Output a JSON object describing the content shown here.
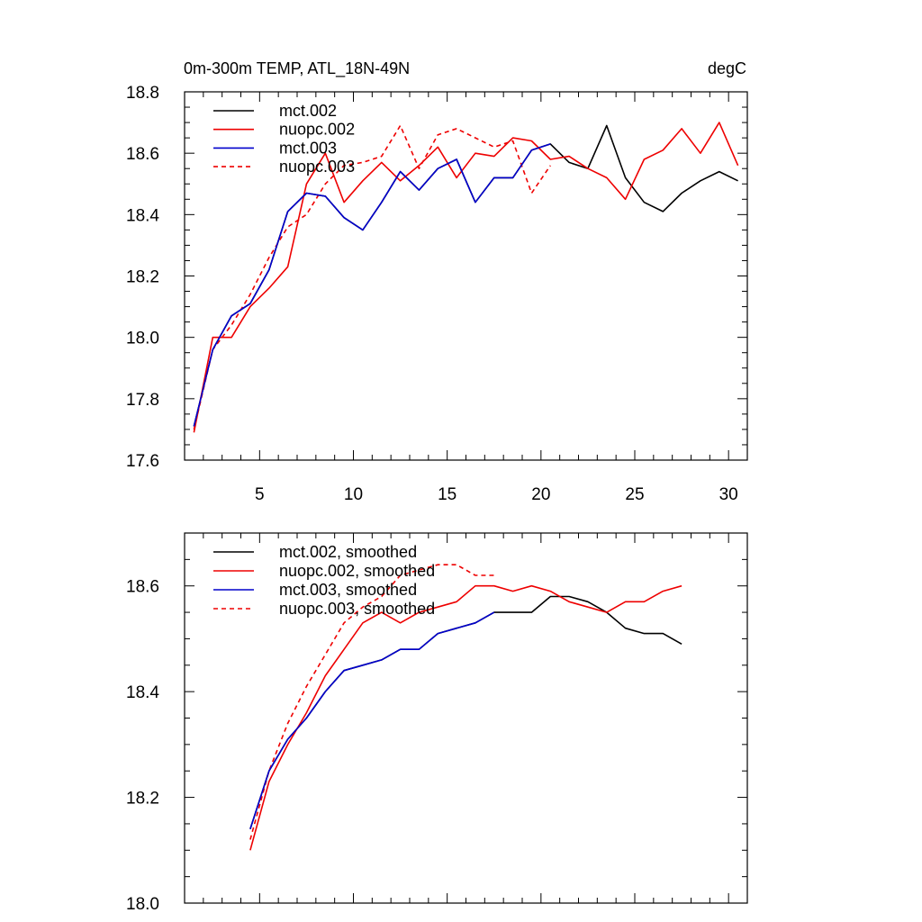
{
  "colors": {
    "mct002": "#000000",
    "nuopc002": "#ee0000",
    "mct003": "#0000cc",
    "nuopc003": "#ee0000"
  },
  "chart_data": [
    {
      "type": "line",
      "title": "0m-300m TEMP, ATL_18N-49N",
      "units": "degC",
      "xlabel": "",
      "ylabel": "",
      "xlim": [
        1,
        31
      ],
      "ylim": [
        17.6,
        18.8
      ],
      "xticks": [
        5,
        10,
        15,
        20,
        25,
        30
      ],
      "yticks": [
        17.6,
        17.8,
        18.0,
        18.2,
        18.4,
        18.6,
        18.8
      ],
      "ytick_labels": [
        "17.6",
        "17.8",
        "18.0",
        "18.2",
        "18.4",
        "18.6",
        "18.8"
      ],
      "xtick_labels": [
        "5",
        "10",
        "15",
        "20",
        "25",
        "30"
      ],
      "legend_position": "top-left",
      "series": [
        {
          "name": "mct.002",
          "color_key": "mct002",
          "dashed": false,
          "x": [
            1.5,
            2.5,
            3.5,
            4.5,
            5.5,
            6.5,
            7.5,
            8.5,
            9.5,
            10.5,
            11.5,
            12.5,
            13.5,
            14.5,
            15.5,
            16.5,
            17.5,
            18.5,
            19.5,
            20.5,
            21.5,
            22.5,
            23.5,
            24.5,
            25.5,
            26.5,
            27.5,
            28.5,
            29.5,
            30.5
          ],
          "y": [
            17.71,
            17.96,
            18.07,
            18.11,
            18.22,
            18.41,
            18.47,
            18.46,
            18.39,
            18.35,
            18.44,
            18.54,
            18.48,
            18.55,
            18.58,
            18.44,
            18.52,
            18.52,
            18.61,
            18.63,
            18.57,
            18.55,
            18.69,
            18.52,
            18.44,
            18.41,
            18.47,
            18.51,
            18.54,
            18.51
          ]
        },
        {
          "name": "nuopc.002",
          "color_key": "nuopc002",
          "dashed": false,
          "x": [
            1.5,
            2.5,
            3.5,
            4.5,
            5.5,
            6.5,
            7.5,
            8.5,
            9.5,
            10.5,
            11.5,
            12.5,
            13.5,
            14.5,
            15.5,
            16.5,
            17.5,
            18.5,
            19.5,
            20.5,
            21.5,
            22.5,
            23.5,
            24.5,
            25.5,
            26.5,
            27.5,
            28.5,
            29.5,
            30.5
          ],
          "y": [
            17.69,
            18.0,
            18.0,
            18.1,
            18.16,
            18.23,
            18.5,
            18.6,
            18.44,
            18.51,
            18.57,
            18.51,
            18.56,
            18.62,
            18.52,
            18.6,
            18.59,
            18.65,
            18.64,
            18.58,
            18.59,
            18.55,
            18.52,
            18.45,
            18.58,
            18.61,
            18.68,
            18.6,
            18.7,
            18.56
          ]
        },
        {
          "name": "mct.003",
          "color_key": "mct003",
          "dashed": false,
          "x": [
            1.5,
            2.5,
            3.5,
            4.5,
            5.5,
            6.5,
            7.5,
            8.5,
            9.5,
            10.5,
            11.5,
            12.5,
            13.5,
            14.5,
            15.5,
            16.5,
            17.5,
            18.5,
            19.5,
            20.5
          ],
          "y": [
            17.71,
            17.96,
            18.07,
            18.11,
            18.22,
            18.41,
            18.47,
            18.46,
            18.39,
            18.35,
            18.44,
            18.54,
            18.48,
            18.55,
            18.58,
            18.44,
            18.52,
            18.52,
            18.61,
            18.63
          ]
        },
        {
          "name": "nuopc.003",
          "color_key": "nuopc003",
          "dashed": true,
          "x": [
            1.5,
            2.5,
            3.5,
            4.5,
            5.5,
            6.5,
            7.5,
            8.5,
            9.5,
            10.5,
            11.5,
            12.5,
            13.5,
            14.5,
            15.5,
            16.5,
            17.5,
            18.5,
            19.5,
            20.5
          ],
          "y": [
            17.7,
            17.96,
            18.04,
            18.14,
            18.26,
            18.36,
            18.4,
            18.5,
            18.56,
            18.57,
            18.59,
            18.69,
            18.55,
            18.66,
            18.68,
            18.65,
            18.62,
            18.64,
            18.47,
            18.56
          ]
        }
      ]
    },
    {
      "type": "line",
      "title": "",
      "xlabel": "",
      "ylabel": "",
      "xlim": [
        1,
        31
      ],
      "ylim": [
        18.0,
        18.7
      ],
      "xticks": [
        5,
        10,
        15,
        20,
        25,
        30
      ],
      "yticks": [
        18.0,
        18.2,
        18.4,
        18.6
      ],
      "ytick_labels": [
        "18.0",
        "18.2",
        "18.4",
        "18.6"
      ],
      "legend_position": "top-left",
      "series": [
        {
          "name": "mct.002, smoothed",
          "color_key": "mct002",
          "dashed": false,
          "x": [
            4.5,
            5.5,
            6.5,
            7.5,
            8.5,
            9.5,
            10.5,
            11.5,
            12.5,
            13.5,
            14.5,
            15.5,
            16.5,
            17.5,
            18.5,
            19.5,
            20.5,
            21.5,
            22.5,
            23.5,
            24.5,
            25.5,
            26.5,
            27.5
          ],
          "y": [
            18.14,
            18.25,
            18.31,
            18.35,
            18.4,
            18.44,
            18.45,
            18.46,
            18.48,
            18.48,
            18.51,
            18.52,
            18.53,
            18.55,
            18.55,
            18.55,
            18.58,
            18.58,
            18.57,
            18.55,
            18.52,
            18.51,
            18.51,
            18.49
          ]
        },
        {
          "name": "nuopc.002, smoothed",
          "color_key": "nuopc002",
          "dashed": false,
          "x": [
            4.5,
            5.5,
            6.5,
            7.5,
            8.5,
            9.5,
            10.5,
            11.5,
            12.5,
            13.5,
            14.5,
            15.5,
            16.5,
            17.5,
            18.5,
            19.5,
            20.5,
            21.5,
            22.5,
            23.5,
            24.5,
            25.5,
            26.5,
            27.5
          ],
          "y": [
            18.1,
            18.23,
            18.3,
            18.36,
            18.43,
            18.48,
            18.53,
            18.55,
            18.53,
            18.55,
            18.56,
            18.57,
            18.6,
            18.6,
            18.59,
            18.6,
            18.59,
            18.57,
            18.56,
            18.55,
            18.57,
            18.57,
            18.59,
            18.6
          ]
        },
        {
          "name": "mct.003, smoothed",
          "color_key": "mct003",
          "dashed": false,
          "x": [
            4.5,
            5.5,
            6.5,
            7.5,
            8.5,
            9.5,
            10.5,
            11.5,
            12.5,
            13.5,
            14.5,
            15.5,
            16.5,
            17.5
          ],
          "y": [
            18.14,
            18.25,
            18.31,
            18.35,
            18.4,
            18.44,
            18.45,
            18.46,
            18.48,
            18.48,
            18.51,
            18.52,
            18.53,
            18.55
          ]
        },
        {
          "name": "nuopc.003, smoothed",
          "color_key": "nuopc003",
          "dashed": true,
          "x": [
            4.5,
            5.5,
            6.5,
            7.5,
            8.5,
            9.5,
            10.5,
            11.5,
            12.5,
            13.5,
            14.5,
            15.5,
            16.5,
            17.5
          ],
          "y": [
            18.12,
            18.25,
            18.34,
            18.41,
            18.47,
            18.53,
            18.56,
            18.58,
            18.62,
            18.63,
            18.64,
            18.64,
            18.62,
            18.62
          ]
        }
      ]
    }
  ]
}
